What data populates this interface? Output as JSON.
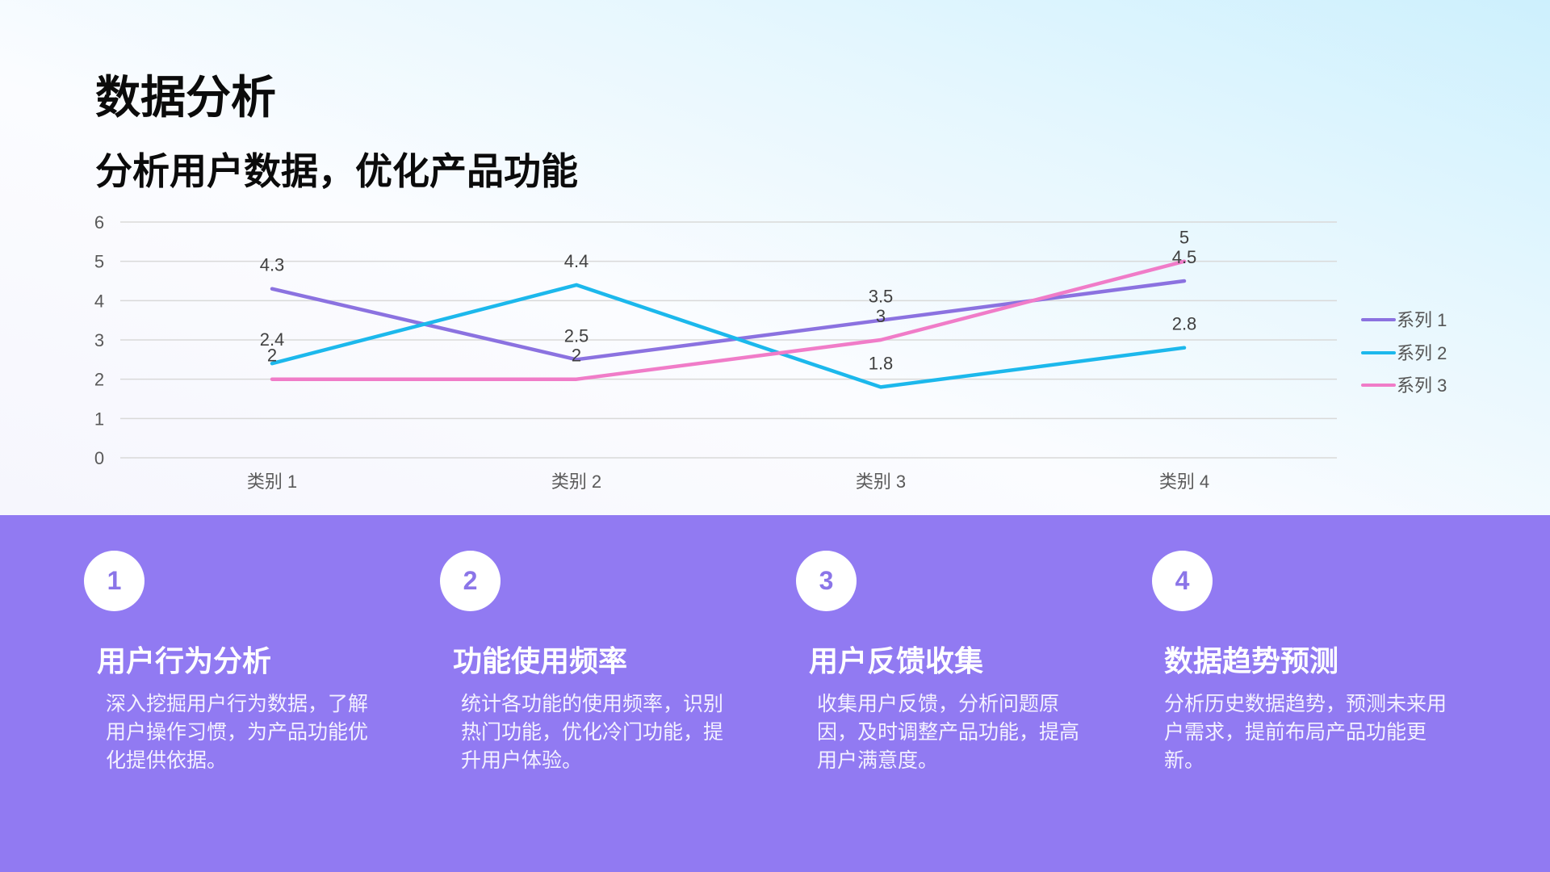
{
  "header": {
    "title": "数据分析",
    "subtitle": "分析用户数据，优化产品功能"
  },
  "colors": {
    "panel_bg": "#917af2",
    "series_1": "#8b72e0",
    "series_2": "#1cb8ec",
    "series_3": "#f07cc8",
    "badge_text": "#8b75e8"
  },
  "chart_data": {
    "type": "line",
    "title": "",
    "xlabel": "",
    "ylabel": "",
    "categories": [
      "类别 1",
      "类别 2",
      "类别 3",
      "类别 4"
    ],
    "series": [
      {
        "name": "系列 1",
        "values": [
          4.3,
          2.5,
          3.5,
          4.5
        ]
      },
      {
        "name": "系列 2",
        "values": [
          2.4,
          4.4,
          1.8,
          2.8
        ]
      },
      {
        "name": "系列 3",
        "values": [
          2,
          2,
          3,
          5
        ]
      }
    ],
    "ylim": [
      0,
      6
    ],
    "yticks": [
      "0",
      "1",
      "2",
      "3",
      "4",
      "5",
      "6"
    ],
    "grid": true,
    "data_labels": true,
    "legend_position": "right"
  },
  "legend": {
    "items": [
      {
        "label": "系列 1"
      },
      {
        "label": "系列 2"
      },
      {
        "label": "系列 3"
      }
    ]
  },
  "cards": [
    {
      "number": "1",
      "title": "用户行为分析",
      "desc": "深入挖掘用户行为数据，了解用户操作习惯，为产品功能优化提供依据。"
    },
    {
      "number": "2",
      "title": "功能使用频率",
      "desc": "统计各功能的使用频率，识别热门功能，优化冷门功能，提升用户体验。"
    },
    {
      "number": "3",
      "title": "用户反馈收集",
      "desc": "收集用户反馈，分析问题原因，及时调整产品功能，提高用户满意度。"
    },
    {
      "number": "4",
      "title": "数据趋势预测",
      "desc": "分析历史数据趋势，预测未来用户需求，提前布局产品功能更新。"
    }
  ]
}
